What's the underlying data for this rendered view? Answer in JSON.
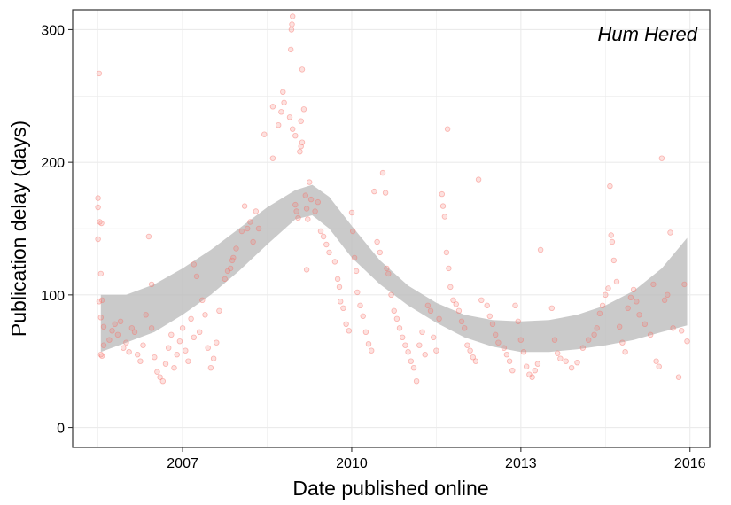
{
  "chart_data": {
    "type": "scatter",
    "title": "",
    "annotation": "Hum Hered",
    "xlabel": "Date published online",
    "ylabel": "Publication delay (days)",
    "xlim": [
      2005.05,
      2016.35
    ],
    "ylim": [
      -15,
      315
    ],
    "x_ticks": [
      2007,
      2010,
      2013,
      2016
    ],
    "x_tick_labels": [
      "2007",
      "2010",
      "2013",
      "2016"
    ],
    "y_ticks": [
      0,
      100,
      200,
      300
    ],
    "y_tick_labels": [
      "0",
      "100",
      "200",
      "300"
    ],
    "grid": true,
    "legend": "none",
    "colors": {
      "points": "#f8766d",
      "ribbon": "#bdbdbd",
      "grid": "#ebebeb",
      "frame": "#333333"
    },
    "smooth_ribbon": {
      "x": [
        2005.55,
        2006.0,
        2006.5,
        2007.0,
        2007.5,
        2008.0,
        2008.5,
        2009.0,
        2009.3,
        2009.6,
        2010.0,
        2010.5,
        2011.0,
        2011.5,
        2012.0,
        2012.5,
        2013.0,
        2013.5,
        2014.0,
        2014.5,
        2015.0,
        2015.5,
        2015.95
      ],
      "lower": [
        57,
        64,
        72,
        85,
        100,
        118,
        138,
        157,
        160,
        150,
        128,
        108,
        92,
        79,
        68,
        61,
        57,
        57,
        59,
        62,
        66,
        72,
        77
      ],
      "upper": [
        100,
        100,
        108,
        120,
        134,
        150,
        166,
        179,
        183,
        174,
        152,
        126,
        107,
        94,
        85,
        81,
        80,
        81,
        85,
        92,
        103,
        120,
        143
      ]
    },
    "points": [
      [
        2005.52,
        267
      ],
      [
        2005.5,
        173
      ],
      [
        2005.5,
        166
      ],
      [
        2005.53,
        155
      ],
      [
        2005.56,
        154
      ],
      [
        2005.5,
        142
      ],
      [
        2005.55,
        116
      ],
      [
        2005.57,
        96
      ],
      [
        2005.52,
        95
      ],
      [
        2005.55,
        83
      ],
      [
        2005.6,
        76
      ],
      [
        2005.6,
        62
      ],
      [
        2005.55,
        55
      ],
      [
        2005.57,
        54
      ],
      [
        2005.7,
        66
      ],
      [
        2005.75,
        73
      ],
      [
        2005.8,
        78
      ],
      [
        2005.85,
        70
      ],
      [
        2005.9,
        80
      ],
      [
        2005.95,
        60
      ],
      [
        2006.0,
        64
      ],
      [
        2006.05,
        57
      ],
      [
        2006.1,
        75
      ],
      [
        2006.15,
        72
      ],
      [
        2006.2,
        55
      ],
      [
        2006.25,
        50
      ],
      [
        2006.3,
        62
      ],
      [
        2006.35,
        85
      ],
      [
        2006.4,
        144
      ],
      [
        2006.45,
        108
      ],
      [
        2006.45,
        75
      ],
      [
        2006.5,
        53
      ],
      [
        2006.55,
        42
      ],
      [
        2006.6,
        38
      ],
      [
        2006.65,
        35
      ],
      [
        2006.7,
        48
      ],
      [
        2006.75,
        60
      ],
      [
        2006.8,
        70
      ],
      [
        2006.85,
        45
      ],
      [
        2006.9,
        55
      ],
      [
        2006.95,
        65
      ],
      [
        2007.0,
        75
      ],
      [
        2007.05,
        58
      ],
      [
        2007.1,
        50
      ],
      [
        2007.15,
        82
      ],
      [
        2007.2,
        68
      ],
      [
        2007.3,
        72
      ],
      [
        2007.35,
        96
      ],
      [
        2007.4,
        85
      ],
      [
        2007.45,
        60
      ],
      [
        2007.5,
        45
      ],
      [
        2007.55,
        52
      ],
      [
        2007.6,
        64
      ],
      [
        2007.65,
        88
      ],
      [
        2007.25,
        114
      ],
      [
        2007.2,
        123
      ],
      [
        2007.75,
        112
      ],
      [
        2007.8,
        118
      ],
      [
        2007.85,
        120
      ],
      [
        2007.88,
        126
      ],
      [
        2007.9,
        128
      ],
      [
        2007.95,
        135
      ],
      [
        2008.05,
        148
      ],
      [
        2008.1,
        167
      ],
      [
        2008.15,
        150
      ],
      [
        2008.2,
        155
      ],
      [
        2008.25,
        140
      ],
      [
        2008.3,
        163
      ],
      [
        2008.35,
        150
      ],
      [
        2008.45,
        221
      ],
      [
        2008.6,
        203
      ],
      [
        2008.6,
        242
      ],
      [
        2008.7,
        228
      ],
      [
        2008.75,
        238
      ],
      [
        2008.78,
        253
      ],
      [
        2008.8,
        245
      ],
      [
        2008.9,
        234
      ],
      [
        2008.95,
        225
      ],
      [
        2009.0,
        220
      ],
      [
        2008.92,
        285
      ],
      [
        2008.93,
        300
      ],
      [
        2008.94,
        304
      ],
      [
        2008.95,
        310
      ],
      [
        2009.0,
        168
      ],
      [
        2009.02,
        163
      ],
      [
        2009.05,
        158
      ],
      [
        2009.08,
        208
      ],
      [
        2009.1,
        212
      ],
      [
        2009.12,
        215
      ],
      [
        2009.1,
        231
      ],
      [
        2009.15,
        240
      ],
      [
        2009.12,
        270
      ],
      [
        2009.18,
        175
      ],
      [
        2009.2,
        165
      ],
      [
        2009.22,
        157
      ],
      [
        2009.25,
        185
      ],
      [
        2009.28,
        172
      ],
      [
        2009.2,
        119
      ],
      [
        2009.35,
        163
      ],
      [
        2009.4,
        170
      ],
      [
        2009.45,
        148
      ],
      [
        2009.5,
        144
      ],
      [
        2009.55,
        138
      ],
      [
        2009.6,
        132
      ],
      [
        2009.7,
        125
      ],
      [
        2009.75,
        112
      ],
      [
        2009.78,
        106
      ],
      [
        2009.8,
        95
      ],
      [
        2009.85,
        90
      ],
      [
        2009.9,
        78
      ],
      [
        2009.95,
        73
      ],
      [
        2010.0,
        162
      ],
      [
        2010.02,
        148
      ],
      [
        2010.05,
        128
      ],
      [
        2010.08,
        118
      ],
      [
        2010.1,
        102
      ],
      [
        2010.15,
        92
      ],
      [
        2010.2,
        84
      ],
      [
        2010.25,
        72
      ],
      [
        2010.3,
        63
      ],
      [
        2010.35,
        58
      ],
      [
        2010.4,
        178
      ],
      [
        2010.45,
        140
      ],
      [
        2010.5,
        132
      ],
      [
        2010.55,
        192
      ],
      [
        2010.6,
        177
      ],
      [
        2010.62,
        120
      ],
      [
        2010.65,
        116
      ],
      [
        2010.7,
        100
      ],
      [
        2010.75,
        88
      ],
      [
        2010.8,
        82
      ],
      [
        2010.85,
        75
      ],
      [
        2010.9,
        68
      ],
      [
        2010.95,
        62
      ],
      [
        2011.0,
        57
      ],
      [
        2011.05,
        50
      ],
      [
        2011.1,
        45
      ],
      [
        2011.15,
        35
      ],
      [
        2011.2,
        62
      ],
      [
        2011.25,
        72
      ],
      [
        2011.3,
        55
      ],
      [
        2011.35,
        92
      ],
      [
        2011.4,
        88
      ],
      [
        2011.45,
        68
      ],
      [
        2011.5,
        58
      ],
      [
        2011.55,
        82
      ],
      [
        2011.6,
        176
      ],
      [
        2011.62,
        167
      ],
      [
        2011.65,
        159
      ],
      [
        2011.68,
        132
      ],
      [
        2011.7,
        225
      ],
      [
        2011.72,
        120
      ],
      [
        2011.75,
        106
      ],
      [
        2011.8,
        96
      ],
      [
        2011.85,
        93
      ],
      [
        2011.9,
        88
      ],
      [
        2011.95,
        80
      ],
      [
        2012.0,
        75
      ],
      [
        2012.05,
        62
      ],
      [
        2012.1,
        58
      ],
      [
        2012.15,
        53
      ],
      [
        2012.2,
        50
      ],
      [
        2012.25,
        187
      ],
      [
        2012.3,
        96
      ],
      [
        2012.4,
        92
      ],
      [
        2012.45,
        84
      ],
      [
        2012.5,
        78
      ],
      [
        2012.55,
        70
      ],
      [
        2012.6,
        64
      ],
      [
        2012.7,
        60
      ],
      [
        2012.75,
        55
      ],
      [
        2012.8,
        50
      ],
      [
        2012.85,
        43
      ],
      [
        2012.9,
        92
      ],
      [
        2012.95,
        80
      ],
      [
        2013.0,
        66
      ],
      [
        2013.05,
        57
      ],
      [
        2013.1,
        46
      ],
      [
        2013.15,
        40
      ],
      [
        2013.2,
        38
      ],
      [
        2013.25,
        43
      ],
      [
        2013.3,
        48
      ],
      [
        2013.35,
        134
      ],
      [
        2013.55,
        90
      ],
      [
        2013.6,
        66
      ],
      [
        2013.65,
        56
      ],
      [
        2013.7,
        52
      ],
      [
        2013.8,
        50
      ],
      [
        2013.9,
        45
      ],
      [
        2014.0,
        49
      ],
      [
        2014.1,
        60
      ],
      [
        2014.2,
        66
      ],
      [
        2014.3,
        70
      ],
      [
        2014.35,
        75
      ],
      [
        2014.4,
        86
      ],
      [
        2014.45,
        92
      ],
      [
        2014.5,
        100
      ],
      [
        2014.55,
        105
      ],
      [
        2014.58,
        182
      ],
      [
        2014.6,
        145
      ],
      [
        2014.62,
        140
      ],
      [
        2014.65,
        126
      ],
      [
        2014.7,
        110
      ],
      [
        2014.75,
        76
      ],
      [
        2014.8,
        64
      ],
      [
        2014.85,
        57
      ],
      [
        2014.9,
        90
      ],
      [
        2014.95,
        98
      ],
      [
        2015.0,
        104
      ],
      [
        2015.05,
        95
      ],
      [
        2015.1,
        85
      ],
      [
        2015.2,
        78
      ],
      [
        2015.3,
        70
      ],
      [
        2015.35,
        108
      ],
      [
        2015.4,
        50
      ],
      [
        2015.45,
        46
      ],
      [
        2015.5,
        203
      ],
      [
        2015.55,
        96
      ],
      [
        2015.6,
        100
      ],
      [
        2015.65,
        147
      ],
      [
        2015.7,
        75
      ],
      [
        2015.8,
        38
      ],
      [
        2015.85,
        73
      ],
      [
        2015.9,
        108
      ],
      [
        2015.95,
        65
      ]
    ]
  }
}
